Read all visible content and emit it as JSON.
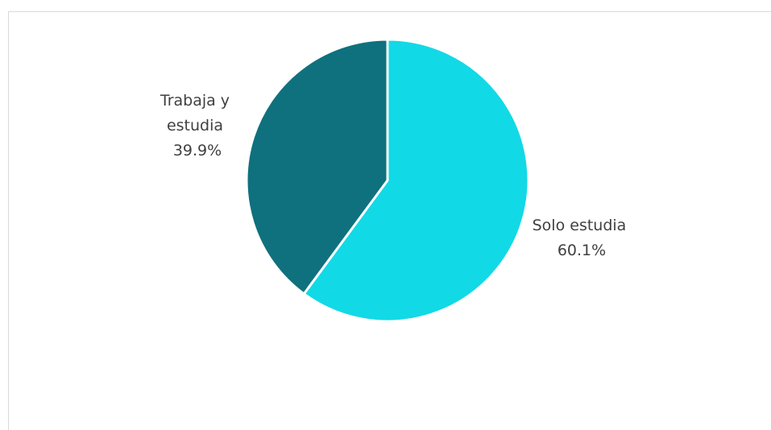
{
  "chart_data": {
    "type": "pie",
    "title": "",
    "slices": [
      {
        "label_line1": "Solo estudia",
        "label_line2": "",
        "percent_label": "60.1%",
        "value": 60.1,
        "color": "#12d9e6"
      },
      {
        "label_line1": "Trabaja y",
        "label_line2": "estudia",
        "percent_label": "39.9%",
        "value": 39.9,
        "color": "#0f717e"
      }
    ],
    "start_angle": "12 o'clock",
    "direction": "clockwise",
    "slice_separator_color": "#ffffff",
    "legend": "none"
  }
}
